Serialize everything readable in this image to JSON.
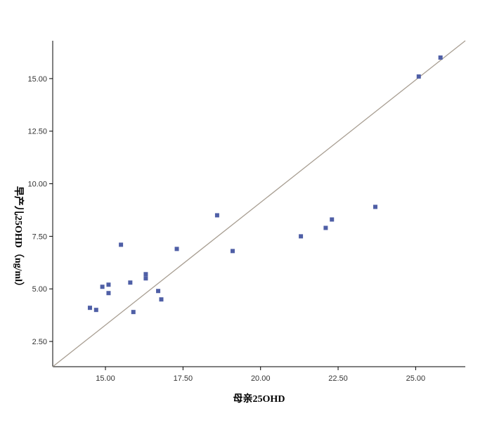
{
  "chart_data": {
    "type": "scatter",
    "title": "",
    "xlabel": "母亲25OHD",
    "ylabel": "早产儿25OHD（ng/ml）",
    "xlim": [
      13.3,
      26.6
    ],
    "ylim": [
      1.3,
      16.8
    ],
    "x_ticks": [
      15,
      17.5,
      20,
      22.5,
      25
    ],
    "x_tick_labels": [
      "15.00",
      "17.50",
      "20.00",
      "22.50",
      "25.00"
    ],
    "y_ticks": [
      2.5,
      5,
      7.5,
      10,
      12.5,
      15
    ],
    "y_tick_labels": [
      "2.50",
      "5.00",
      "7.50",
      "10.00",
      "12.50",
      "15.00"
    ],
    "grid": false,
    "legend": false,
    "point_color": "#4f5fa6",
    "line_color": "#a89e92",
    "fit_line": {
      "x": [
        13.3,
        26.6
      ],
      "y": [
        1.3,
        16.8
      ]
    },
    "points": [
      {
        "x": 14.5,
        "y": 4.1
      },
      {
        "x": 14.7,
        "y": 4.0
      },
      {
        "x": 14.9,
        "y": 5.1
      },
      {
        "x": 15.1,
        "y": 5.2
      },
      {
        "x": 15.1,
        "y": 4.8
      },
      {
        "x": 15.5,
        "y": 7.1
      },
      {
        "x": 15.8,
        "y": 5.3
      },
      {
        "x": 15.9,
        "y": 3.9
      },
      {
        "x": 16.3,
        "y": 5.7
      },
      {
        "x": 16.3,
        "y": 5.5
      },
      {
        "x": 16.7,
        "y": 4.9
      },
      {
        "x": 16.8,
        "y": 4.5
      },
      {
        "x": 17.3,
        "y": 6.9
      },
      {
        "x": 18.6,
        "y": 8.5
      },
      {
        "x": 19.1,
        "y": 6.8
      },
      {
        "x": 21.3,
        "y": 7.5
      },
      {
        "x": 22.1,
        "y": 7.9
      },
      {
        "x": 22.3,
        "y": 8.3
      },
      {
        "x": 23.7,
        "y": 8.9
      },
      {
        "x": 25.1,
        "y": 15.1
      },
      {
        "x": 25.8,
        "y": 16.0
      }
    ]
  }
}
